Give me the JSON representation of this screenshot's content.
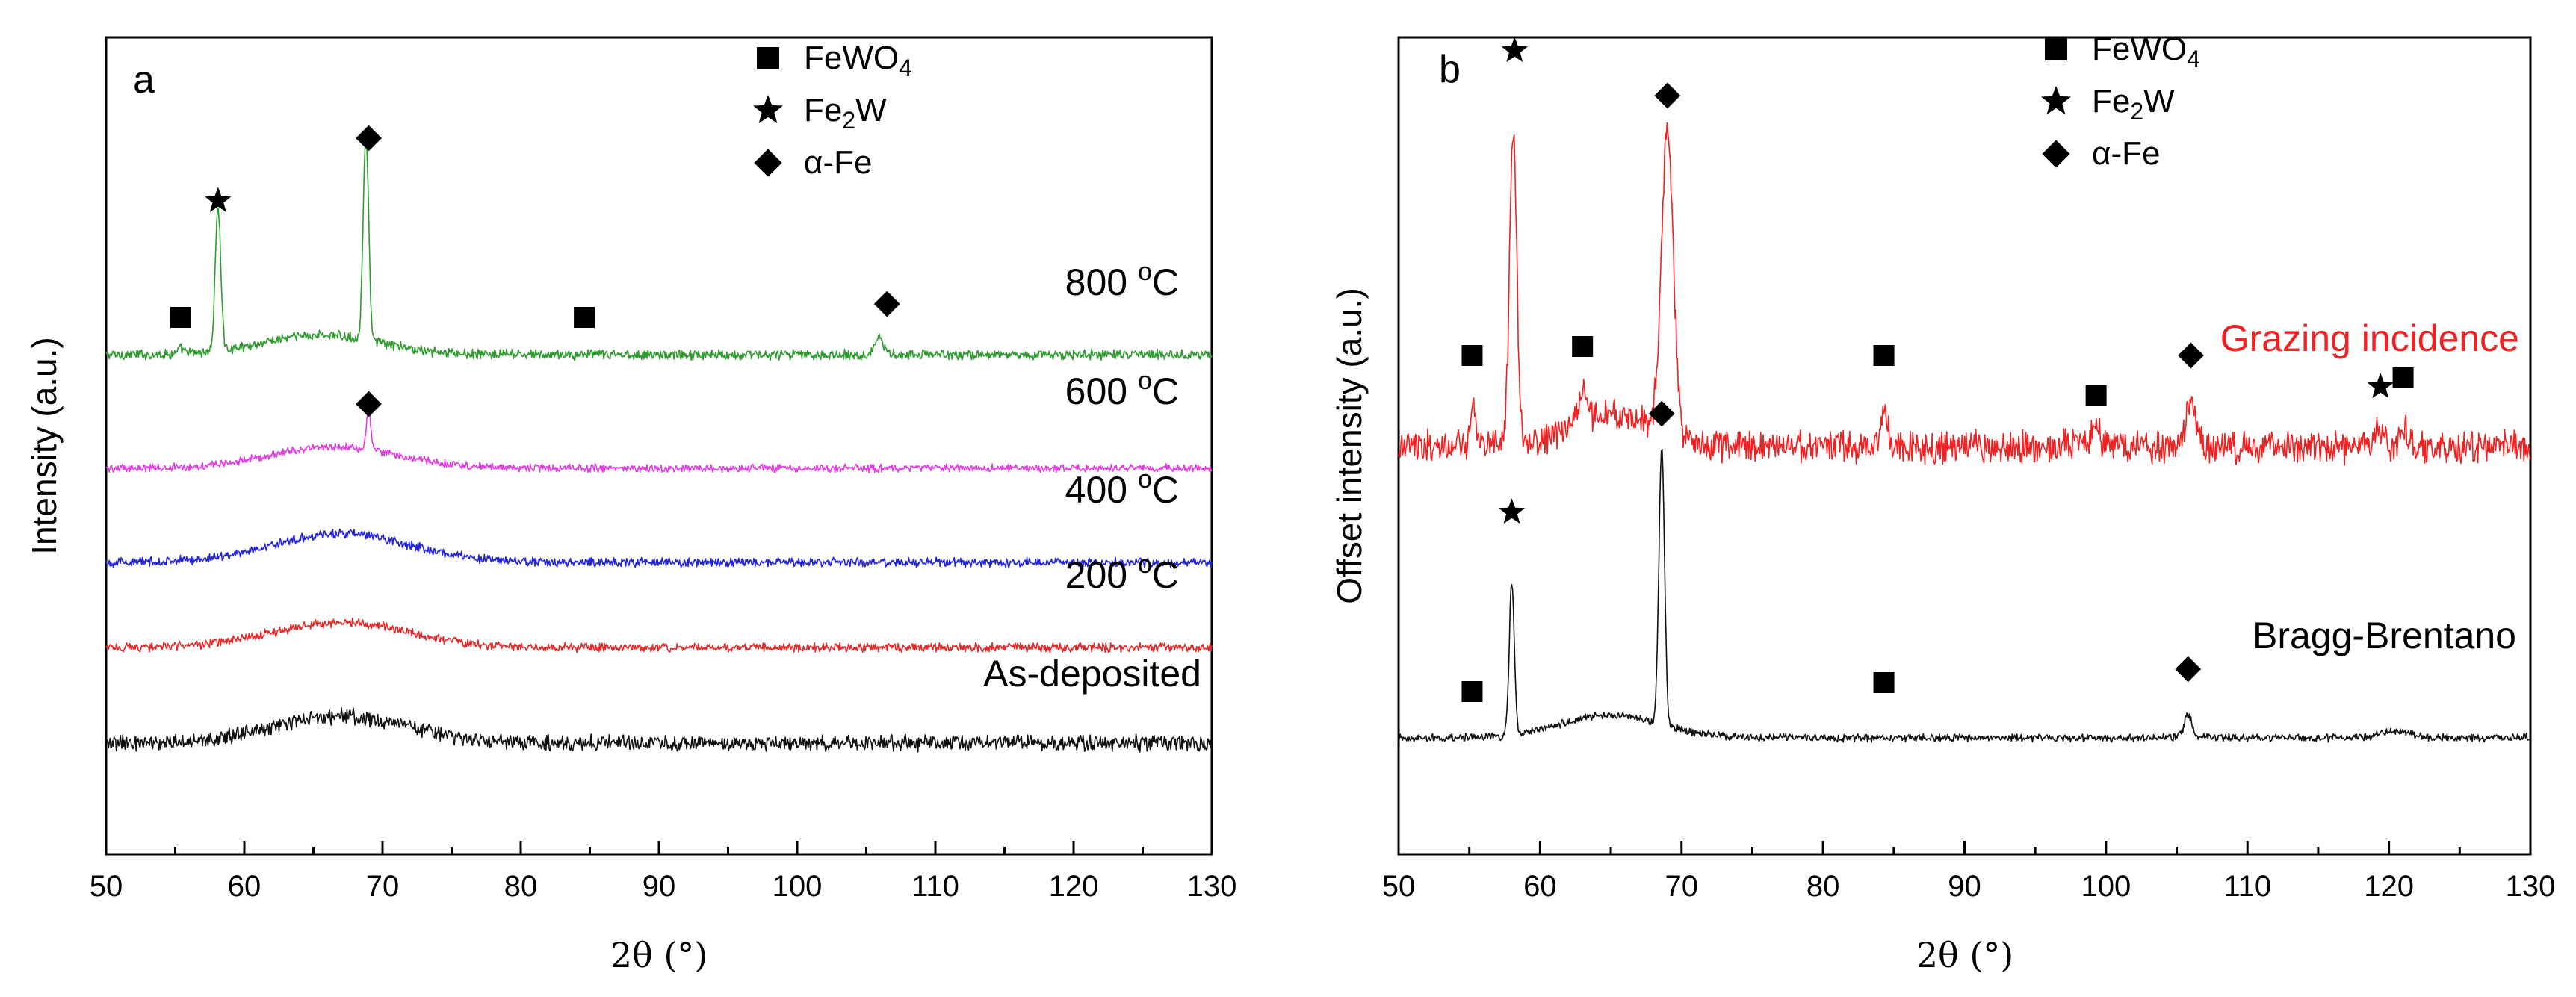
{
  "chart_data": [
    {
      "type": "line",
      "panel_label": "a",
      "xlabel": "2θ (°)",
      "ylabel": "Intensity (a.u.)",
      "xlim": [
        50,
        130
      ],
      "xticks": [
        "50",
        "60",
        "70",
        "80",
        "90",
        "100",
        "110",
        "120",
        "130"
      ],
      "legend": [
        {
          "marker": "square",
          "main": "FeWO",
          "sub": "4",
          "tail": ""
        },
        {
          "marker": "star",
          "main": "Fe",
          "sub": "2",
          "tail": "W"
        },
        {
          "marker": "diamond",
          "main": "α-Fe",
          "sub": "",
          "tail": ""
        }
      ],
      "series": [
        {
          "name": "800 °C",
          "label_main": "800 ",
          "label_sup": "o",
          "label_tail": "C",
          "color": "#2e9b2e",
          "baseline": 0.0,
          "noise": 0.45,
          "hump": {
            "center": 65.5,
            "width": 6,
            "height": 2.2
          },
          "peaks": [
            {
              "x": 58.1,
              "h": 16,
              "w": 0.28
            },
            {
              "x": 68.8,
              "h": 23,
              "w": 0.28
            },
            {
              "x": 105.9,
              "h": 2.2,
              "w": 0.4
            },
            {
              "x": 55.4,
              "h": 0.5,
              "w": 0.3
            }
          ]
        },
        {
          "name": "600 °C",
          "label_main": "600 ",
          "label_sup": "o",
          "label_tail": "C",
          "color": "#e23de2",
          "baseline": 0.0,
          "noise": 0.35,
          "hump": {
            "center": 66.5,
            "width": 6.5,
            "height": 2.4
          },
          "peaks": [
            {
              "x": 69.0,
              "h": 4.5,
              "w": 0.22
            }
          ]
        },
        {
          "name": "400 °C",
          "label_main": "400 ",
          "label_sup": "o",
          "label_tail": "C",
          "color": "#2323d9",
          "baseline": 0.0,
          "noise": 0.4,
          "hump": {
            "center": 67,
            "width": 7,
            "height": 3.2
          },
          "peaks": []
        },
        {
          "name": "200 °C",
          "label_main": "200 ",
          "label_sup": "o",
          "label_tail": "C",
          "color": "#e02a2a",
          "baseline": 0.0,
          "noise": 0.4,
          "hump": {
            "center": 67,
            "width": 7,
            "height": 2.8
          },
          "peaks": []
        },
        {
          "name": "As-deposited",
          "label_main": "As-deposited",
          "label_sup": "",
          "label_tail": "",
          "color": "#111111",
          "baseline": 0.0,
          "noise": 0.7,
          "hump": {
            "center": 67,
            "width": 7,
            "height": 3.0
          },
          "peaks": []
        }
      ],
      "markers": [
        {
          "type": "diamond",
          "x": 69.0,
          "series": "800 °C",
          "above": 23
        },
        {
          "type": "star",
          "x": 58.1,
          "series": "800 °C",
          "above": 16
        },
        {
          "type": "square",
          "x": 55.4,
          "series": "800 °C",
          "above": 3
        },
        {
          "type": "square",
          "x": 84.6,
          "series": "800 °C",
          "above": 3
        },
        {
          "type": "diamond",
          "x": 106.5,
          "series": "800 °C",
          "above": 4.5
        },
        {
          "type": "diamond",
          "x": 69.0,
          "series": "600 °C",
          "above": 6
        }
      ]
    },
    {
      "type": "line",
      "panel_label": "b",
      "xlabel": "2θ (°)",
      "ylabel": "Offset intensity (a.u.)",
      "xlim": [
        50,
        130
      ],
      "xticks": [
        "50",
        "60",
        "70",
        "80",
        "90",
        "100",
        "110",
        "120",
        "130"
      ],
      "legend": [
        {
          "marker": "square",
          "main": "FeWO",
          "sub": "4",
          "tail": ""
        },
        {
          "marker": "star",
          "main": "Fe",
          "sub": "2",
          "tail": "W"
        },
        {
          "marker": "diamond",
          "main": "α-Fe",
          "sub": "",
          "tail": ""
        }
      ],
      "series": [
        {
          "name": "Grazing incidence",
          "label_main": "Grazing incidence",
          "label_sup": "",
          "label_tail": "",
          "color": "#ee2222",
          "baseline": 0.0,
          "noise": 1.4,
          "hump": {
            "center": 65,
            "width": 4,
            "height": 3.5
          },
          "peaks": [
            {
              "x": 58.1,
              "h": 36,
              "w": 0.35
            },
            {
              "x": 69.0,
              "h": 34,
              "w": 0.6
            },
            {
              "x": 55.3,
              "h": 4,
              "w": 0.3
            },
            {
              "x": 63.0,
              "h": 3,
              "w": 0.5
            },
            {
              "x": 84.3,
              "h": 3.5,
              "w": 0.4
            },
            {
              "x": 99.3,
              "h": 2.5,
              "w": 0.4
            },
            {
              "x": 106.0,
              "h": 5,
              "w": 0.5
            },
            {
              "x": 119.4,
              "h": 2,
              "w": 0.4
            },
            {
              "x": 121.0,
              "h": 2,
              "w": 0.4
            }
          ]
        },
        {
          "name": "Bragg-Brentano",
          "label_main": "Bragg-Brentano",
          "label_sup": "",
          "label_tail": "",
          "color": "#111111",
          "baseline": 0.0,
          "noise": 0.35,
          "hump": {
            "center": 65,
            "width": 5,
            "height": 2.5
          },
          "peaks": [
            {
              "x": 58.0,
              "h": 17,
              "w": 0.25
            },
            {
              "x": 68.6,
              "h": 31,
              "w": 0.28
            },
            {
              "x": 105.8,
              "h": 2.5,
              "w": 0.4
            },
            {
              "x": 120.5,
              "h": 0.8,
              "w": 1.5
            }
          ]
        }
      ],
      "markers": [
        {
          "type": "star",
          "x": 58.2,
          "series": "Grazing incidence",
          "above": 43
        },
        {
          "type": "diamond",
          "x": 69.0,
          "series": "Grazing incidence",
          "above": 38
        },
        {
          "type": "square",
          "x": 55.2,
          "series": "Grazing incidence",
          "above": 9
        },
        {
          "type": "square",
          "x": 63.0,
          "series": "Grazing incidence",
          "above": 10
        },
        {
          "type": "square",
          "x": 84.3,
          "series": "Grazing incidence",
          "above": 9
        },
        {
          "type": "square",
          "x": 99.3,
          "series": "Grazing incidence",
          "above": 4.5
        },
        {
          "type": "diamond",
          "x": 106.0,
          "series": "Grazing incidence",
          "above": 9
        },
        {
          "type": "star",
          "x": 119.4,
          "series": "Grazing incidence",
          "above": 5.5
        },
        {
          "type": "square",
          "x": 121.0,
          "series": "Grazing incidence",
          "above": 6.5
        },
        {
          "type": "star",
          "x": 58.0,
          "series": "Bragg-Brentano",
          "above": 24
        },
        {
          "type": "diamond",
          "x": 68.6,
          "series": "Bragg-Brentano",
          "above": 35
        },
        {
          "type": "square",
          "x": 55.2,
          "series": "Bragg-Brentano",
          "above": 4
        },
        {
          "type": "square",
          "x": 84.3,
          "series": "Bragg-Brentano",
          "above": 5
        },
        {
          "type": "diamond",
          "x": 105.8,
          "series": "Bragg-Brentano",
          "above": 6.5
        }
      ]
    }
  ]
}
